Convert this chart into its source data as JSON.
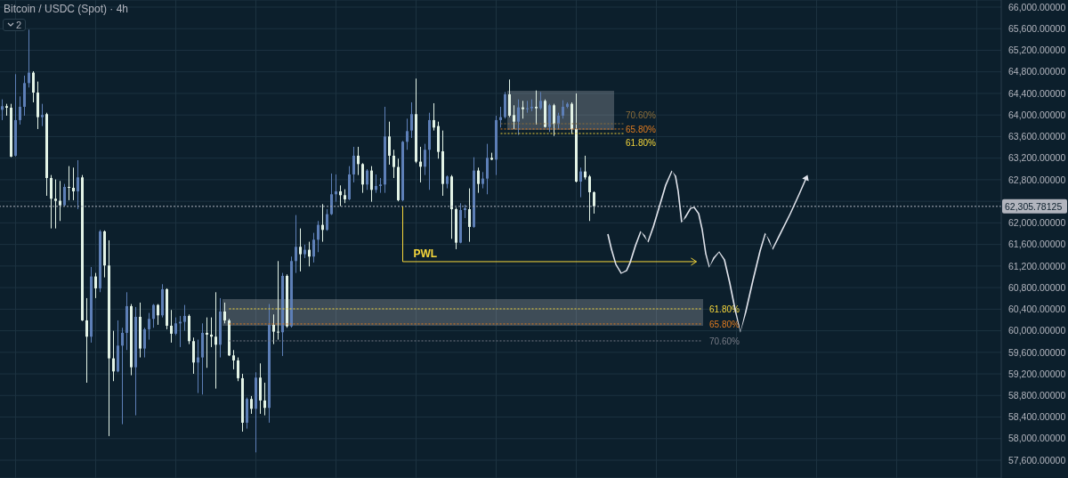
{
  "chart_data": {
    "type": "candlestick",
    "title": "Bitcoin / USDC (Spot) · 4h",
    "categories": [
      null,
      null,
      null,
      null,
      null,
      null,
      null,
      null,
      null,
      null,
      null,
      null,
      null,
      null,
      null,
      null,
      null,
      null,
      null,
      null,
      null,
      null,
      null,
      null,
      null,
      null,
      null,
      null,
      null,
      null,
      null,
      null,
      null,
      null,
      null,
      null,
      null,
      null,
      null,
      null,
      null,
      null,
      null,
      null,
      null,
      null,
      null,
      null,
      null,
      null,
      null,
      null,
      null,
      null,
      null,
      null,
      null,
      null,
      null,
      null,
      null,
      null,
      null,
      null,
      null,
      null,
      null,
      null,
      null,
      null,
      null,
      null,
      null,
      null,
      null,
      null,
      null,
      null,
      null,
      null,
      null,
      null,
      null,
      null,
      null,
      null,
      null,
      null,
      null,
      null,
      null,
      null,
      null,
      null,
      null,
      null,
      null,
      null,
      null,
      null,
      null,
      null,
      null,
      null,
      null,
      null,
      null,
      null,
      null,
      null,
      null,
      null,
      null,
      null,
      null,
      null,
      null,
      null,
      null,
      null,
      null,
      null,
      null,
      null,
      null,
      null,
      null,
      null,
      null,
      null,
      null,
      null,
      null,
      null,
      null,
      null,
      null,
      null,
      null,
      null,
      null,
      null,
      null,
      null,
      null,
      null,
      null,
      null,
      null,
      null,
      null,
      null,
      null,
      null,
      null,
      null,
      null,
      null,
      null,
      null,
      null,
      null,
      null,
      null,
      null,
      null,
      null,
      null,
      null,
      null,
      null,
      null,
      null,
      null,
      null,
      null,
      null,
      null,
      null,
      null,
      null,
      null,
      null,
      null,
      null,
      null,
      null,
      null,
      null,
      null,
      null,
      null,
      null,
      null,
      null,
      null,
      null,
      null,
      null,
      null,
      null,
      null,
      null,
      null,
      null,
      null,
      null,
      null,
      null,
      null,
      null,
      null,
      null,
      null,
      null,
      null,
      null,
      null,
      null,
      null,
      null,
      null,
      null,
      null,
      null
    ],
    "ohlc": [
      [
        64097,
        64290,
        63905,
        64163
      ],
      [
        64163,
        64207,
        63987,
        64135
      ],
      [
        64135,
        64207,
        63217,
        63228
      ],
      [
        63245,
        64757,
        63230,
        63905
      ],
      [
        63905,
        64345,
        63822,
        64152
      ],
      [
        64152,
        64730,
        63987,
        64592
      ],
      [
        64592,
        65582,
        64510,
        64785
      ],
      [
        64785,
        64812,
        64235,
        64416
      ],
      [
        64416,
        64620,
        63740,
        63960
      ],
      [
        63960,
        64207,
        63795,
        64000
      ],
      [
        64015,
        64042,
        62502,
        62832
      ],
      [
        62832,
        62887,
        61897,
        62447
      ],
      [
        62447,
        62805,
        61897,
        62409
      ],
      [
        62409,
        62777,
        62035,
        62326
      ],
      [
        62326,
        62722,
        62310,
        62667
      ],
      [
        62667,
        63052,
        62420,
        62650
      ],
      [
        62650,
        63025,
        62420,
        62585
      ],
      [
        62585,
        63162,
        62255,
        62843
      ],
      [
        62843,
        62887,
        60180,
        60192
      ],
      [
        60192,
        60605,
        59037,
        59890
      ],
      [
        59890,
        61182,
        59780,
        61006
      ],
      [
        61006,
        61072,
        60605,
        60786
      ],
      [
        60786,
        61870,
        60715,
        61842
      ],
      [
        61842,
        61860,
        60990,
        61210
      ],
      [
        61210,
        61677,
        58047,
        59488
      ],
      [
        59488,
        59999,
        59065,
        59246
      ],
      [
        59246,
        60192,
        59230,
        59724
      ],
      [
        59724,
        60055,
        58267,
        59961
      ],
      [
        59961,
        60714,
        59642,
        60456
      ],
      [
        60456,
        60495,
        59175,
        59323
      ],
      [
        59323,
        60440,
        58432,
        60258
      ],
      [
        60258,
        60522,
        59505,
        59670
      ],
      [
        59670,
        60055,
        59505,
        60027
      ],
      [
        60027,
        60330,
        59835,
        60220
      ],
      [
        60220,
        60495,
        60055,
        60478
      ],
      [
        60478,
        60495,
        60110,
        60286
      ],
      [
        60286,
        60863,
        60247,
        60770
      ],
      [
        60770,
        60786,
        60027,
        60093
      ],
      [
        60093,
        60385,
        59780,
        59945
      ],
      [
        59945,
        60247,
        59917,
        60137
      ],
      [
        60137,
        60275,
        59697,
        60165
      ],
      [
        60165,
        60478,
        59999,
        60275
      ],
      [
        60275,
        60302,
        59752,
        59807
      ],
      [
        59807,
        59873,
        59202,
        59411
      ],
      [
        59411,
        59835,
        58845,
        59505
      ],
      [
        59505,
        60137,
        58817,
        59961
      ],
      [
        59961,
        60247,
        59312,
        59928
      ],
      [
        59928,
        60247,
        59697,
        59890
      ],
      [
        59890,
        60714,
        58927,
        59741
      ],
      [
        59741,
        60605,
        59505,
        60357
      ],
      [
        60357,
        60522,
        60137,
        60192
      ],
      [
        60192,
        60220,
        59532,
        59543
      ],
      [
        59543,
        59642,
        59285,
        59450
      ],
      [
        59450,
        59505,
        59065,
        59120
      ],
      [
        59120,
        59202,
        58130,
        58295
      ],
      [
        58295,
        58762,
        58185,
        58735
      ],
      [
        58735,
        58790,
        58460,
        58553
      ],
      [
        58553,
        59230,
        57745,
        59131
      ],
      [
        59131,
        59395,
        58460,
        58707
      ],
      [
        58707,
        59037,
        58432,
        58570
      ],
      [
        58570,
        60495,
        58295,
        60110
      ],
      [
        60110,
        60302,
        59752,
        59983
      ],
      [
        59983,
        61292,
        59835,
        59972
      ],
      [
        59972,
        61072,
        59532,
        61017
      ],
      [
        61017,
        61045,
        60055,
        60082
      ],
      [
        60082,
        61375,
        60060,
        61292
      ],
      [
        61292,
        62145,
        61072,
        61556
      ],
      [
        61556,
        61897,
        61100,
        61419
      ],
      [
        61419,
        61595,
        61347,
        61501
      ],
      [
        61501,
        61650,
        61193,
        61375
      ],
      [
        61375,
        61815,
        61265,
        61688
      ],
      [
        61688,
        62035,
        61457,
        61963
      ],
      [
        61963,
        62348,
        61650,
        61870
      ],
      [
        61870,
        62255,
        61853,
        62161
      ],
      [
        62161,
        62915,
        62145,
        62530
      ],
      [
        62530,
        62898,
        62392,
        62585
      ],
      [
        62585,
        62695,
        62310,
        62513
      ],
      [
        62513,
        62623,
        62365,
        62436
      ],
      [
        62436,
        63052,
        62420,
        62898
      ],
      [
        62898,
        63410,
        62750,
        63245
      ],
      [
        63245,
        63410,
        62887,
        63090
      ],
      [
        63090,
        63107,
        62557,
        62711
      ],
      [
        62711,
        62997,
        62612,
        62970
      ],
      [
        62970,
        63052,
        62392,
        62612
      ],
      [
        62612,
        62898,
        62557,
        62684
      ],
      [
        62684,
        62832,
        62557,
        62711
      ],
      [
        62711,
        64152,
        62557,
        63602
      ],
      [
        63602,
        63877,
        63079,
        63245
      ],
      [
        63245,
        63355,
        62832,
        63036
      ],
      [
        63036,
        63190,
        62400,
        62420
      ],
      [
        62420,
        63520,
        62400,
        63503
      ],
      [
        63503,
        63932,
        63355,
        63701
      ],
      [
        63712,
        64235,
        63575,
        64015
      ],
      [
        64015,
        64675,
        63107,
        63135
      ],
      [
        63135,
        63410,
        62750,
        63041
      ],
      [
        63041,
        63465,
        62887,
        63355
      ],
      [
        63355,
        64042,
        62612,
        63905
      ],
      [
        63905,
        64218,
        63712,
        63767
      ],
      [
        63795,
        63877,
        63190,
        63316
      ],
      [
        63327,
        63712,
        62502,
        62722
      ],
      [
        62722,
        62880,
        62640,
        62860
      ],
      [
        62860,
        62887,
        61704,
        62254
      ],
      [
        62254,
        62282,
        61512,
        61633
      ],
      [
        61633,
        62365,
        61622,
        62238
      ],
      [
        62238,
        62337,
        62090,
        62271
      ],
      [
        62254,
        62640,
        61649,
        61925
      ],
      [
        61925,
        63217,
        61908,
        62970
      ],
      [
        62970,
        63025,
        62557,
        62722
      ],
      [
        62722,
        62942,
        62640,
        62821
      ],
      [
        62821,
        63465,
        62530,
        63206
      ],
      [
        63206,
        63300,
        63162,
        63173
      ],
      [
        63173,
        63987,
        62887,
        63905
      ],
      [
        63905,
        64152,
        63767,
        63960
      ],
      [
        63960,
        64427,
        63932,
        64383
      ],
      [
        64383,
        64658,
        63960,
        63987
      ],
      [
        63998,
        64180,
        63740,
        63877
      ],
      [
        63877,
        64290,
        63630,
        64141
      ],
      [
        64141,
        64262,
        63932,
        64108
      ],
      [
        64108,
        64262,
        64042,
        64125
      ],
      [
        64125,
        64290,
        64070,
        64152
      ],
      [
        64152,
        64455,
        63822,
        64125
      ],
      [
        64125,
        64427,
        64097,
        64262
      ],
      [
        64262,
        64290,
        63767,
        63778
      ],
      [
        63778,
        64207,
        63685,
        64180
      ],
      [
        64180,
        64207,
        63613,
        63833
      ],
      [
        63833,
        64042,
        63740,
        63987
      ],
      [
        63987,
        64273,
        63932,
        64152
      ],
      [
        64152,
        64235,
        64125,
        64207
      ],
      [
        64207,
        64235,
        63646,
        63740
      ],
      [
        63740,
        64400,
        62750,
        62766
      ],
      [
        62766,
        63025,
        62475,
        62953
      ],
      [
        62953,
        63245,
        62805,
        62843
      ],
      [
        62860,
        62887,
        62035,
        62568
      ],
      [
        62568,
        62585,
        62172,
        62306
      ],
      null,
      null,
      null,
      null,
      null,
      null,
      null,
      null,
      null,
      null,
      null,
      null,
      null,
      null,
      null,
      null,
      null,
      null,
      null,
      null,
      null,
      null,
      null,
      null,
      null,
      null,
      null,
      null,
      null,
      null,
      null,
      null,
      null,
      null,
      null,
      null,
      null,
      null,
      null,
      null,
      null,
      null,
      null,
      null,
      null,
      null,
      null,
      null,
      null,
      null,
      null,
      null,
      null,
      null,
      null,
      null,
      null,
      null,
      null,
      null,
      null,
      null,
      null,
      null,
      null,
      null,
      null,
      null,
      null,
      null,
      null,
      null,
      null,
      null,
      null,
      null,
      null,
      null,
      null,
      null,
      null,
      null,
      null,
      null,
      null,
      null,
      null,
      null,
      null,
      null,
      null
    ],
    "colors": [
      "#5d7fb7",
      "#e3f3e6",
      "#e3f3e6",
      "#5d7fb7",
      "#5d7fb7",
      "#5d7fb7",
      "#5d7fb7",
      "#e3f3e6",
      "#e3f3e6",
      "#5d7fb7",
      "#e3f3e6",
      "#e3f3e6",
      "#e3f3e6",
      "#e3f3e6",
      "#5d7fb7",
      "#e3f3e6",
      "#e3f3e6",
      "#5d7fb7",
      "#e3f3e6",
      "#e3f3e6",
      "#5d7fb7",
      "#e3f3e6",
      "#5d7fb7",
      "#e3f3e6",
      "#e3f3e6",
      "#e3f3e6",
      "#5d7fb7",
      "#5d7fb7",
      "#5d7fb7",
      "#e3f3e6",
      "#5d7fb7",
      "#e3f3e6",
      "#5d7fb7",
      "#5d7fb7",
      "#5d7fb7",
      "#e3f3e6",
      "#5d7fb7",
      "#e3f3e6",
      "#e3f3e6",
      "#5d7fb7",
      "#5d7fb7",
      "#5d7fb7",
      "#e3f3e6",
      "#e3f3e6",
      "#5d7fb7",
      "#5d7fb7",
      "#e3f3e6",
      "#e3f3e6",
      "#e3f3e6",
      "#5d7fb7",
      "#e3f3e6",
      "#e3f3e6",
      "#e3f3e6",
      "#e3f3e6",
      "#e3f3e6",
      "#5d7fb7",
      "#e3f3e6",
      "#5d7fb7",
      "#e3f3e6",
      "#e3f3e6",
      "#5d7fb7",
      "#e3f3e6",
      "#e3f3e6",
      "#5d7fb7",
      "#e3f3e6",
      "#5d7fb7",
      "#5d7fb7",
      "#e3f3e6",
      "#5d7fb7",
      "#e3f3e6",
      "#5d7fb7",
      "#5d7fb7",
      "#e3f3e6",
      "#5d7fb7",
      "#5d7fb7",
      "#5d7fb7",
      "#e3f3e6",
      "#e3f3e6",
      "#5d7fb7",
      "#5d7fb7",
      "#e3f3e6",
      "#e3f3e6",
      "#5d7fb7",
      "#e3f3e6",
      "#5d7fb7",
      "#5d7fb7",
      "#5d7fb7",
      "#e3f3e6",
      "#e3f3e6",
      "#e3f3e6",
      "#5d7fb7",
      "#5d7fb7",
      "#5d7fb7",
      "#e3f3e6",
      "#e3f3e6",
      "#5d7fb7",
      "#5d7fb7",
      "#e3f3e6",
      "#e3f3e6",
      "#e3f3e6",
      "#5d7fb7",
      "#e3f3e6",
      "#e3f3e6",
      "#5d7fb7",
      "#5d7fb7",
      "#e3f3e6",
      "#5d7fb7",
      "#e3f3e6",
      "#5d7fb7",
      "#5d7fb7",
      "#e3f3e6",
      "#5d7fb7",
      "#5d7fb7",
      "#5d7fb7",
      "#e3f3e6",
      "#e3f3e6",
      "#5d7fb7",
      "#e3f3e6",
      "#5d7fb7",
      "#5d7fb7",
      "#e3f3e6",
      "#5d7fb7",
      "#e3f3e6",
      "#5d7fb7",
      "#e3f3e6",
      "#5d7fb7",
      "#5d7fb7",
      "#5d7fb7",
      "#e3f3e6",
      "#e3f3e6",
      "#5d7fb7",
      "#e3f3e6",
      "#e3f3e6",
      "#e3f3e6",
      null,
      null,
      null,
      null,
      null,
      null,
      null,
      null,
      null,
      null,
      null,
      null,
      null,
      null,
      null,
      null,
      null,
      null,
      null,
      null,
      null,
      null,
      null,
      null,
      null,
      null,
      null,
      null,
      null,
      null,
      null,
      null,
      null,
      null,
      null,
      null,
      null,
      null,
      null,
      null,
      null,
      null,
      null,
      null,
      null,
      null,
      null,
      null,
      null,
      null,
      null,
      null,
      null,
      null,
      null,
      null,
      null,
      null,
      null,
      null,
      null,
      null,
      null,
      null,
      null,
      null,
      null,
      null,
      null,
      null,
      null,
      null,
      null,
      null,
      null,
      null,
      null,
      null,
      null,
      null,
      null,
      null,
      null,
      null,
      null,
      null,
      null,
      null,
      null,
      null,
      null
    ],
    "ylim": [
      57270,
      66132
    ],
    "yticks": [
      {
        "value": 57600,
        "label": "57,600.00000"
      },
      {
        "value": 58000,
        "label": "58,000.00000"
      },
      {
        "value": 58400,
        "label": "58,400.00000"
      },
      {
        "value": 58800,
        "label": "58,800.00000"
      },
      {
        "value": 59200,
        "label": "59,200.00000"
      },
      {
        "value": 59600,
        "label": "59,600.00000"
      },
      {
        "value": 60000,
        "label": "60,000.00000"
      },
      {
        "value": 60400,
        "label": "60,400.00000"
      },
      {
        "value": 60800,
        "label": "60,800.00000"
      },
      {
        "value": 61200,
        "label": "61,200.00000"
      },
      {
        "value": 61600,
        "label": "61,600.00000"
      },
      {
        "value": 62000,
        "label": "62,000.00000"
      },
      {
        "value": 62400,
        "label": null
      },
      {
        "value": 62800,
        "label": "62,800.00000"
      },
      {
        "value": 63200,
        "label": "63,200.00000"
      },
      {
        "value": 63600,
        "label": "63,600.00000"
      },
      {
        "value": 64000,
        "label": "64,000.00000"
      },
      {
        "value": 64400,
        "label": "64,400.00000"
      },
      {
        "value": 64800,
        "label": "64,800.00000"
      },
      {
        "value": 65200,
        "label": "65,200.00000"
      },
      {
        "value": 65600,
        "label": "65,600.00000"
      },
      {
        "value": 66000,
        "label": "66,000.00000"
      }
    ],
    "grid": true,
    "ref_lines": [
      {
        "axis": "y",
        "value": 62305.78125,
        "label": "62,305.78125",
        "color": "#b2b5be",
        "line_style": "dotted"
      },
      {
        "axis": "y",
        "value": 61281,
        "label": "PWL",
        "color": "#f5d63b",
        "line_style": "solid"
      },
      {
        "axis": "y",
        "value": 63838,
        "color": "#8d6e3a",
        "line_style": "dotted"
      },
      {
        "axis": "y",
        "value": 63740,
        "color": "#e07b1f",
        "line_style": "dotted"
      },
      {
        "axis": "y",
        "value": 63657,
        "color": "#f5d63b",
        "line_style": "dotted"
      },
      {
        "axis": "y",
        "value": 60406,
        "color": "#f5d63b",
        "line_style": "dotted"
      },
      {
        "axis": "y",
        "value": 60126,
        "color": "#e07b1f",
        "line_style": "dotted"
      },
      {
        "axis": "y",
        "value": 59812,
        "color": "#787b86",
        "line_style": "dotted"
      }
    ],
    "bands": [
      {
        "axis": "y",
        "from": 63723,
        "to": 64449,
        "color": "#b2b5be"
      },
      {
        "axis": "y",
        "from": 60093,
        "to": 60588,
        "color": "#b2b5be"
      }
    ],
    "annotations": [
      "2",
      "70.60%",
      "65.80%",
      "61.80%",
      "61.80%",
      "65.80%",
      "70.60%"
    ]
  }
}
